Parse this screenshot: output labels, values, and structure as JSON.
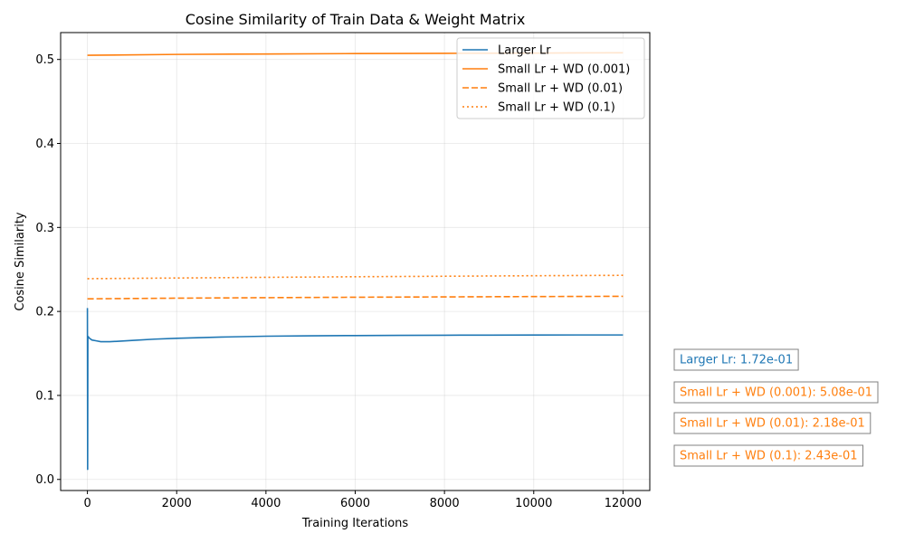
{
  "chart_data": {
    "type": "line",
    "title": "Cosine Similarity of Train Data & Weight Matrix",
    "xlabel": "Training Iterations",
    "ylabel": "Cosine Similarity",
    "xlim": [
      -600,
      12600
    ],
    "ylim": [
      -0.0132,
      0.532
    ],
    "xticks": [
      0,
      2000,
      4000,
      6000,
      8000,
      10000,
      12000
    ],
    "xtick_labels": [
      "0",
      "2000",
      "4000",
      "6000",
      "8000",
      "10000",
      "12000"
    ],
    "yticks": [
      0.0,
      0.1,
      0.2,
      0.3,
      0.4,
      0.5
    ],
    "ytick_labels": [
      "0.0",
      "0.1",
      "0.2",
      "0.3",
      "0.4",
      "0.5"
    ],
    "grid": true,
    "legend": "top-right",
    "series": [
      {
        "name": "Larger Lr",
        "color": "#1f77b4",
        "dash": "solid",
        "x": [
          0,
          5,
          10,
          20,
          30,
          50,
          100,
          200,
          300,
          400,
          500,
          700,
          1000,
          1500,
          2000,
          3000,
          4000,
          5000,
          6000,
          7000,
          8000,
          9000,
          10000,
          11000,
          12000
        ],
        "y": [
          0.204,
          0.012,
          0.168,
          0.17,
          0.169,
          0.168,
          0.166,
          0.165,
          0.164,
          0.164,
          0.164,
          0.1645,
          0.1655,
          0.167,
          0.168,
          0.1695,
          0.1705,
          0.171,
          0.1713,
          0.1715,
          0.1717,
          0.1718,
          0.1719,
          0.172,
          0.172
        ]
      },
      {
        "name": "Small Lr + WD (0.001)",
        "color": "#ff7f0e",
        "dash": "solid",
        "x": [
          0,
          2000,
          4000,
          6000,
          8000,
          10000,
          12000
        ],
        "y": [
          0.505,
          0.506,
          0.5065,
          0.507,
          0.5073,
          0.5076,
          0.508
        ]
      },
      {
        "name": "Small Lr + WD (0.01)",
        "color": "#ff7f0e",
        "dash": "dashed",
        "x": [
          0,
          2000,
          4000,
          6000,
          8000,
          10000,
          12000
        ],
        "y": [
          0.215,
          0.2158,
          0.2164,
          0.2169,
          0.2173,
          0.2177,
          0.218
        ]
      },
      {
        "name": "Small Lr + WD (0.1)",
        "color": "#ff7f0e",
        "dash": "dotted",
        "x": [
          0,
          2000,
          4000,
          6000,
          8000,
          10000,
          12000
        ],
        "y": [
          0.239,
          0.2398,
          0.2406,
          0.2413,
          0.2419,
          0.2425,
          0.243
        ]
      }
    ],
    "annotations": [
      {
        "text": "Larger Lr: 1.72e-01",
        "color": "#1f77b4"
      },
      {
        "text": "Small Lr + WD (0.001): 5.08e-01",
        "color": "#ff7f0e"
      },
      {
        "text": "Small Lr + WD (0.01): 2.18e-01",
        "color": "#ff7f0e"
      },
      {
        "text": "Small Lr + WD (0.1): 2.43e-01",
        "color": "#ff7f0e"
      }
    ]
  }
}
